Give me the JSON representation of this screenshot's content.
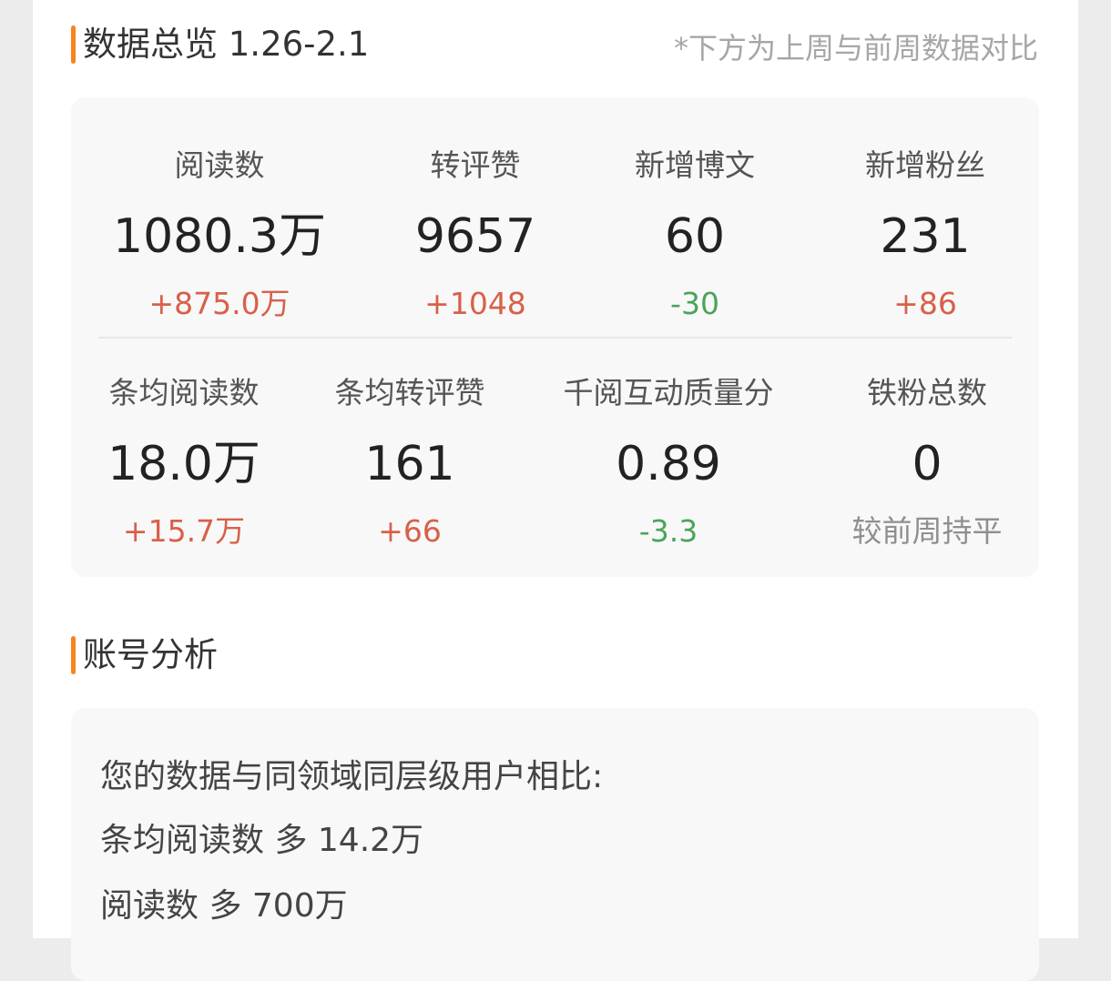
{
  "overview": {
    "title": "数据总览 1.26-2.1",
    "note": "*下方为上周与前周数据对比",
    "row1": [
      {
        "label": "阅读数",
        "value": "1080.3万",
        "delta": "+875.0万",
        "trend": "up"
      },
      {
        "label": "转评赞",
        "value": "9657",
        "delta": "+1048",
        "trend": "up"
      },
      {
        "label": "新增博文",
        "value": "60",
        "delta": "-30",
        "trend": "down"
      },
      {
        "label": "新增粉丝",
        "value": "231",
        "delta": "+86",
        "trend": "up"
      }
    ],
    "row2": [
      {
        "label": "条均阅读数",
        "value": "18.0万",
        "delta": "+15.7万",
        "trend": "up"
      },
      {
        "label": "条均转评赞",
        "value": "161",
        "delta": "+66",
        "trend": "up"
      },
      {
        "label": "千阅互动质量分",
        "value": "0.89",
        "delta": "-3.3",
        "trend": "down"
      },
      {
        "label": "铁粉总数",
        "value": "0",
        "delta": "较前周持平",
        "trend": "flat"
      }
    ]
  },
  "analysis": {
    "title": "账号分析",
    "intro": "您的数据与同领域同层级用户相比:",
    "lines": [
      "条均阅读数 多 14.2万",
      "阅读数 多 700万"
    ]
  },
  "colors": {
    "accent": "#f5841f",
    "up": "#d8604a",
    "down": "#4aa45a"
  }
}
